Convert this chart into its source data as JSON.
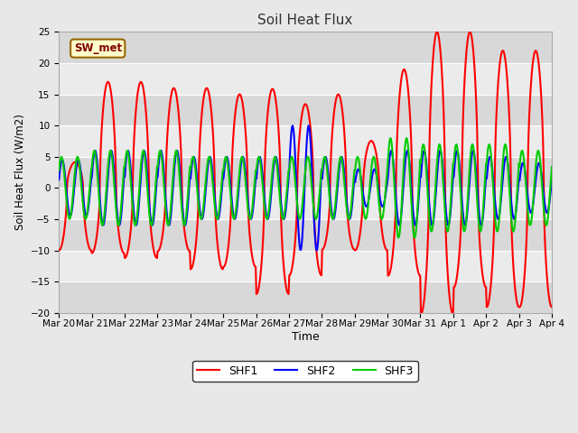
{
  "title": "Soil Heat Flux",
  "ylabel": "Soil Heat Flux (W/m2)",
  "xlabel": "Time",
  "ylim": [
    -20,
    25
  ],
  "yticks": [
    -20,
    -15,
    -10,
    -5,
    0,
    5,
    10,
    15,
    20,
    25
  ],
  "x_labels": [
    "Mar 20",
    "Mar 21",
    "Mar 22",
    "Mar 23",
    "Mar 24",
    "Mar 25",
    "Mar 26",
    "Mar 27",
    "Mar 28",
    "Mar 29",
    "Mar 30",
    "Mar 31",
    "Apr 1",
    "Apr 2",
    "Apr 3",
    "Apr 4"
  ],
  "bg_color": "#e8e8e8",
  "plot_bg_light": "#f0f0f0",
  "plot_bg_dark": "#d8d8d8",
  "annotation_text": "SW_met",
  "annotation_bg": "#ffffcc",
  "annotation_border": "#996600",
  "annotation_text_color": "#800000",
  "shf1_color": "#ff0000",
  "shf2_color": "#0000ff",
  "shf3_color": "#00cc00",
  "line_width": 1.5
}
